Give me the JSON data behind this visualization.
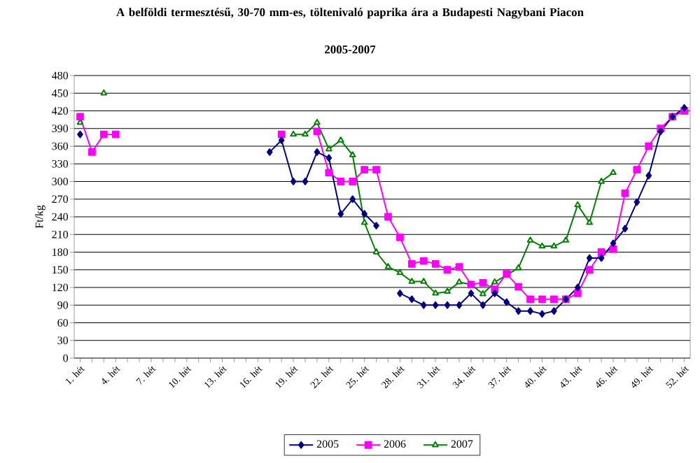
{
  "chart_data": {
    "type": "line",
    "title": "A belföldi termesztésű, 30-70 mm-es, töltenivaló paprika ára a Budapesti Nagybani Piacon",
    "subtitle": "2005-2007",
    "ylabel": "Ft/kg",
    "categories": [
      "1. hét",
      null,
      null,
      "4. hét",
      null,
      null,
      "7. hét",
      null,
      null,
      "10. hét",
      null,
      null,
      "13. hét",
      null,
      null,
      "16. hét",
      null,
      null,
      "19. hét",
      null,
      null,
      "22. hét",
      null,
      null,
      "25. hét",
      null,
      null,
      "28. hét",
      null,
      null,
      "31. hét",
      null,
      null,
      "34. hét",
      null,
      null,
      "37. hét",
      null,
      null,
      "40. hét",
      null,
      null,
      "43. hét",
      null,
      null,
      "46. hét",
      null,
      null,
      "49. hét",
      null,
      null,
      "52. hét"
    ],
    "series": [
      {
        "name": "2005",
        "color": "#000080",
        "marker": "diamond",
        "values": [
          380,
          null,
          null,
          null,
          null,
          null,
          null,
          null,
          null,
          null,
          null,
          null,
          null,
          null,
          null,
          null,
          350,
          370,
          300,
          300,
          350,
          340,
          245,
          270,
          245,
          225,
          null,
          110,
          100,
          90,
          90,
          90,
          90,
          110,
          90,
          110,
          95,
          80,
          80,
          75,
          80,
          100,
          120,
          170,
          170,
          195,
          220,
          265,
          310,
          385,
          410,
          425
        ]
      },
      {
        "name": "2006",
        "color": "#ff00ff",
        "marker": "square",
        "values": [
          410,
          350,
          380,
          380,
          null,
          null,
          null,
          null,
          null,
          null,
          null,
          null,
          null,
          null,
          null,
          null,
          null,
          380,
          null,
          null,
          385,
          315,
          300,
          300,
          320,
          320,
          240,
          205,
          160,
          165,
          160,
          150,
          155,
          125,
          128,
          117,
          143,
          121,
          100,
          100,
          100,
          100,
          110,
          150,
          180,
          185,
          280,
          320,
          360,
          390,
          410,
          420
        ]
      },
      {
        "name": "2007",
        "color": "#008000",
        "marker": "triangle",
        "values": [
          400,
          null,
          450,
          null,
          null,
          null,
          null,
          null,
          null,
          null,
          null,
          null,
          null,
          null,
          null,
          null,
          null,
          null,
          380,
          380,
          400,
          355,
          370,
          345,
          230,
          180,
          155,
          145,
          130,
          130,
          110,
          113,
          129,
          125,
          109,
          129,
          141,
          153,
          200,
          190,
          190,
          200,
          260,
          230,
          300,
          315,
          null,
          null,
          null,
          null,
          null,
          null
        ]
      }
    ],
    "ylim": [
      0,
      480
    ],
    "yticks": [
      0,
      30,
      60,
      90,
      120,
      150,
      180,
      210,
      240,
      270,
      300,
      330,
      360,
      390,
      420,
      450,
      480
    ],
    "grid": "y",
    "legend": "bottom",
    "line_style": "solid"
  }
}
